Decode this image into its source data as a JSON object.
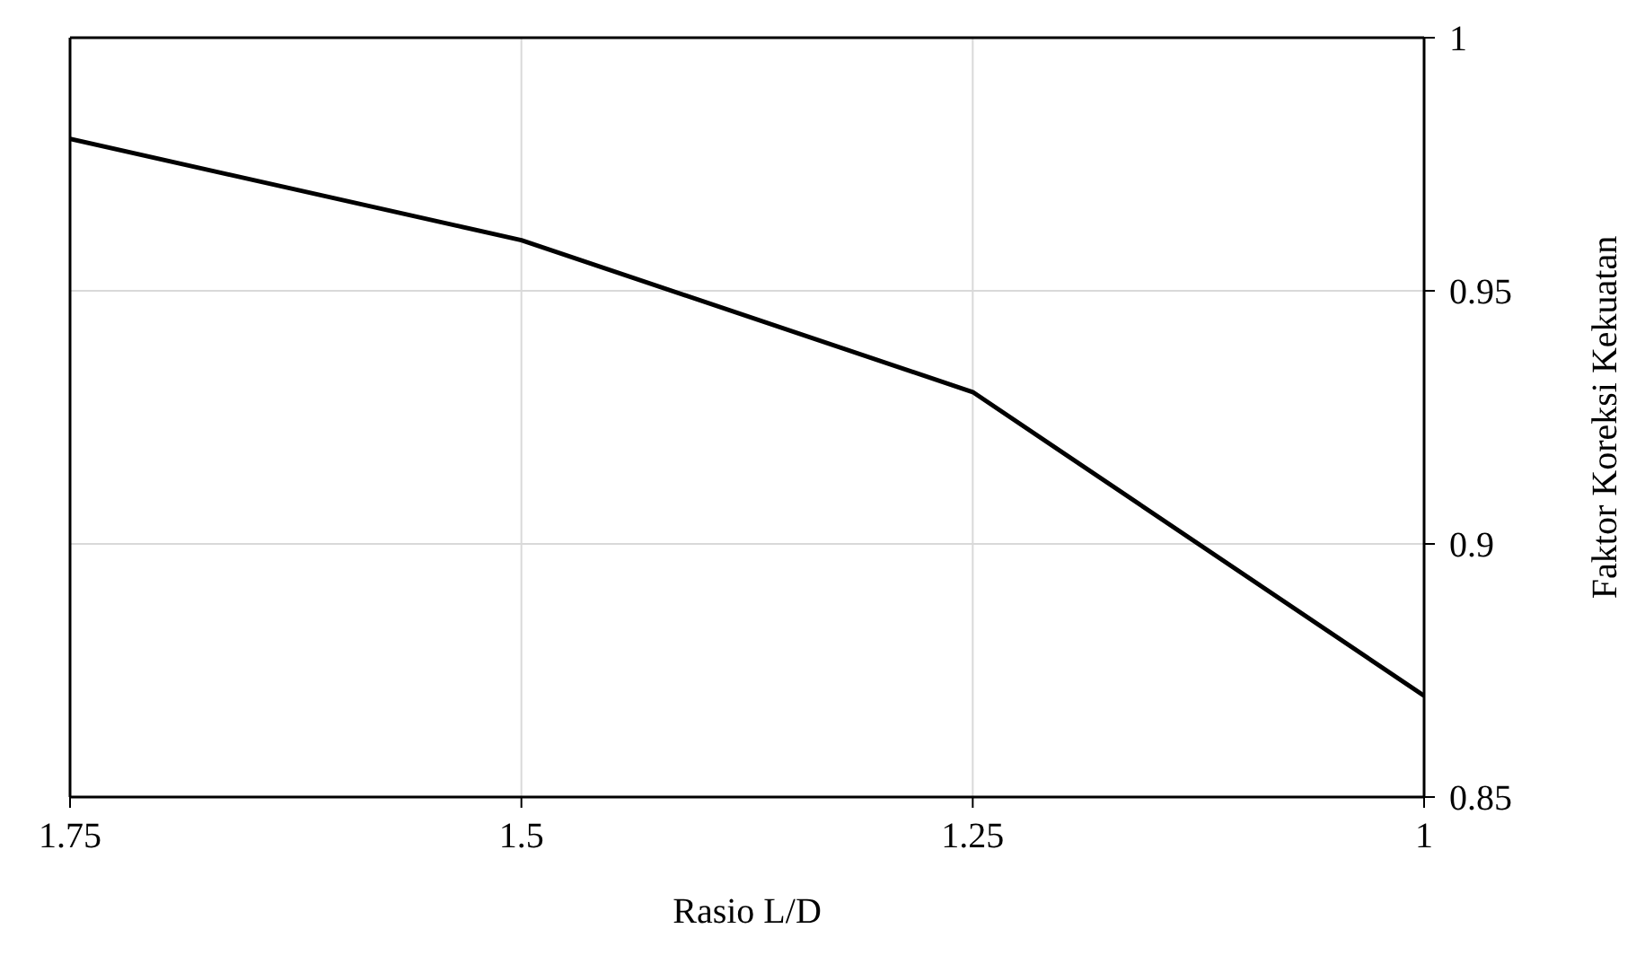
{
  "chart_data": {
    "type": "line",
    "xlabel": "Rasio L/D",
    "ylabel": "Faktor Koreksi Kekuatan",
    "x": [
      1.75,
      1.5,
      1.25,
      1
    ],
    "series": [
      {
        "color": "#000000",
        "values": [
          0.98,
          0.96,
          0.93,
          0.87
        ]
      }
    ],
    "xlim": [
      1.75,
      1
    ],
    "xticks": [
      1.75,
      1.5,
      1.25,
      1
    ],
    "ylim": [
      0.85,
      1
    ],
    "yticks": [
      0.85,
      0.9,
      0.95,
      1
    ],
    "grid": true,
    "marker": "none",
    "line_style": "solid"
  }
}
